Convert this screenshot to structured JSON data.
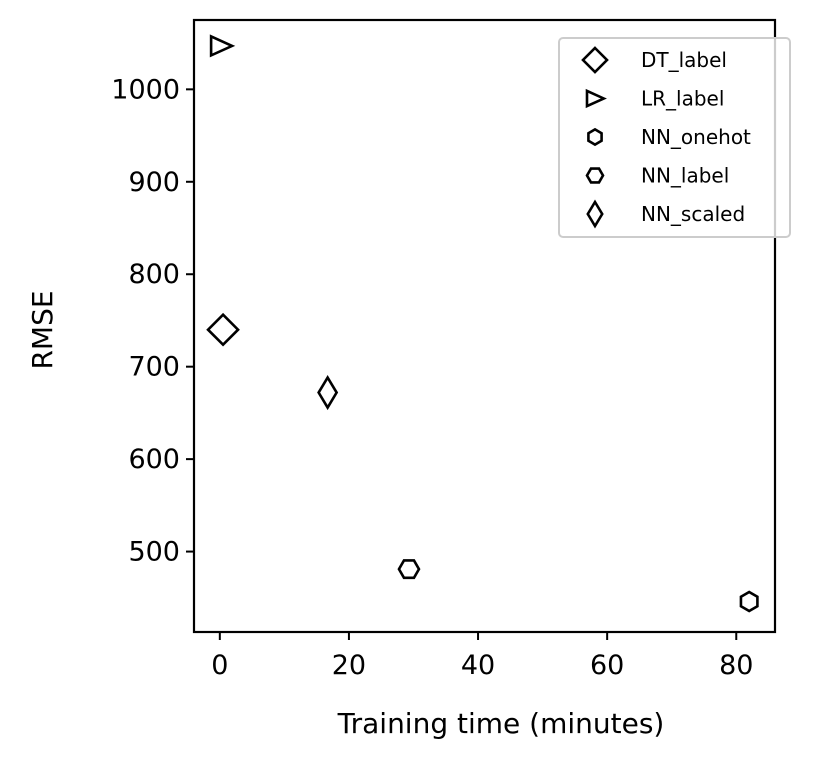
{
  "chart_data": {
    "type": "scatter",
    "title": "",
    "xlabel": "Training time (minutes)",
    "ylabel": "RMSE",
    "xlim": [
      -4,
      86
    ],
    "ylim": [
      413,
      1075
    ],
    "xticks": [
      0,
      20,
      40,
      60,
      80
    ],
    "yticks": [
      500,
      600,
      700,
      800,
      900,
      1000
    ],
    "grid": false,
    "legend_position": "top-right",
    "marker_color": "#000000",
    "series": [
      {
        "name": "DT_label",
        "marker": "diamond",
        "points": [
          {
            "x": 0.5,
            "y": 740
          }
        ]
      },
      {
        "name": "LR_label",
        "marker": "triangle-right",
        "points": [
          {
            "x": 0.2,
            "y": 1047
          }
        ]
      },
      {
        "name": "NN_onehot",
        "marker": "hexagon-pointy",
        "points": [
          {
            "x": 82,
            "y": 446
          }
        ]
      },
      {
        "name": "NN_label",
        "marker": "hexagon-flat",
        "points": [
          {
            "x": 29.3,
            "y": 481
          }
        ]
      },
      {
        "name": "NN_scaled",
        "marker": "thin-diamond",
        "points": [
          {
            "x": 16.7,
            "y": 672
          }
        ]
      }
    ]
  }
}
